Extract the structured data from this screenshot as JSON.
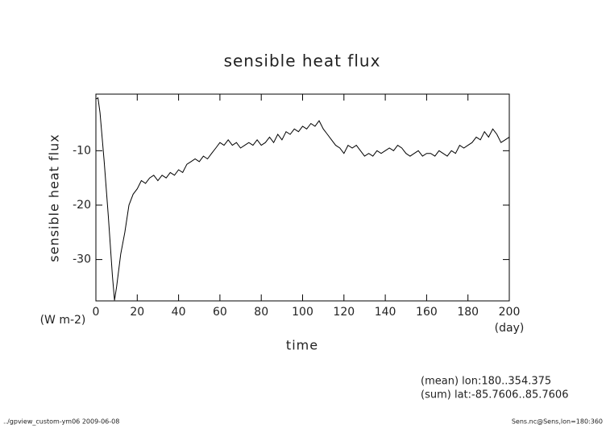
{
  "chart_data": {
    "type": "line",
    "title": "sensible heat flux",
    "y_label": "sensible heat flux",
    "y_units": "(W m-2)",
    "x_label": "time",
    "x_units": "(day)",
    "annotations": [
      "(mean) lon:180..354.375",
      "(sum) lat:-85.7606..85.7606"
    ],
    "footer_left": "../gpview_custom-ym06  2009-06-08",
    "footer_right": "Sens.nc@Sens,lon=180:360",
    "color": "#000000",
    "x": [
      0,
      1,
      2,
      4,
      6,
      8,
      9,
      10,
      12,
      14,
      16,
      18,
      20,
      22,
      24,
      26,
      28,
      30,
      32,
      34,
      36,
      38,
      40,
      42,
      44,
      46,
      48,
      50,
      52,
      54,
      56,
      58,
      60,
      62,
      64,
      66,
      68,
      70,
      72,
      74,
      76,
      78,
      80,
      82,
      84,
      86,
      88,
      90,
      92,
      94,
      96,
      98,
      100,
      102,
      104,
      106,
      108,
      110,
      112,
      114,
      116,
      118,
      120,
      122,
      124,
      126,
      128,
      130,
      132,
      134,
      136,
      138,
      140,
      142,
      144,
      146,
      148,
      150,
      152,
      154,
      156,
      158,
      160,
      162,
      164,
      166,
      168,
      170,
      172,
      174,
      176,
      178,
      180,
      182,
      184,
      186,
      188,
      190,
      192,
      194,
      196,
      198,
      200
    ],
    "values": [
      -0.5,
      -0.3,
      -3,
      -12,
      -22,
      -33,
      -37.5,
      -35,
      -29,
      -25,
      -20,
      -18,
      -17,
      -15.5,
      -16,
      -15,
      -14.5,
      -15.5,
      -14.5,
      -15,
      -14,
      -14.5,
      -13.5,
      -14,
      -12.5,
      -12,
      -11.5,
      -12,
      -11,
      -11.5,
      -10.5,
      -9.5,
      -8.5,
      -9,
      -8,
      -9,
      -8.5,
      -9.5,
      -9,
      -8.5,
      -9,
      -8,
      -9,
      -8.5,
      -7.5,
      -8.5,
      -7,
      -8,
      -6.5,
      -7,
      -6,
      -6.5,
      -5.5,
      -6,
      -5,
      -5.5,
      -4.5,
      -6,
      -7,
      -8,
      -9,
      -9.5,
      -10.5,
      -9,
      -9.5,
      -9,
      -10,
      -11,
      -10.5,
      -11,
      -10,
      -10.5,
      -10,
      -9.5,
      -10,
      -9,
      -9.5,
      -10.5,
      -11,
      -10.5,
      -10,
      -11,
      -10.5,
      -10.5,
      -11,
      -10,
      -10.5,
      -11,
      -10,
      -10.5,
      -9,
      -9.5,
      -9,
      -8.5,
      -7.5,
      -8,
      -6.5,
      -7.5,
      -6,
      -7,
      -8.5,
      -8,
      -7.5
    ],
    "xlim": [
      0,
      200
    ],
    "xticks": [
      0,
      20,
      40,
      60,
      80,
      100,
      120,
      140,
      160,
      180,
      200
    ],
    "ylim": [
      -37.6,
      0.4
    ],
    "yticks": [
      -10,
      -20,
      -30
    ]
  }
}
